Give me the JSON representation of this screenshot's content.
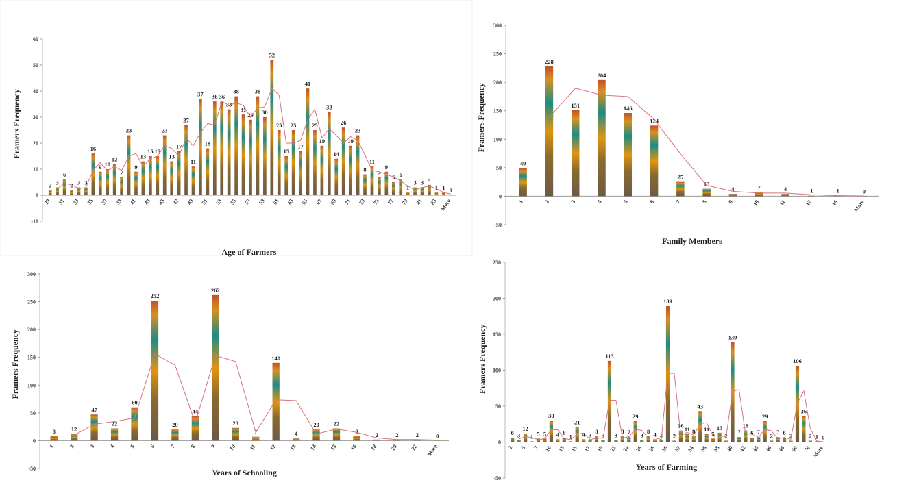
{
  "chart_data": [
    {
      "id": "age",
      "type": "bar",
      "xlabel": "Age of Farmers",
      "ylabel": "Framers Frequency",
      "ylim": [
        -10,
        60
      ],
      "ytick_step": 10,
      "trendline": "2-period moving average",
      "categories": [
        "29",
        "30",
        "31",
        "32",
        "33",
        "34",
        "35",
        "36",
        "37",
        "38",
        "39",
        "40",
        "41",
        "42",
        "43",
        "44",
        "45",
        "46",
        "47",
        "48",
        "49",
        "50",
        "51",
        "52",
        "53",
        "54",
        "55",
        "56",
        "57",
        "58",
        "59",
        "60",
        "61",
        "62",
        "63",
        "64",
        "65",
        "66",
        "67",
        "68",
        "69",
        "70",
        "71",
        "72",
        "73",
        "74",
        "75",
        "76",
        "77",
        "78",
        "79",
        "80",
        "81",
        "82",
        "83",
        "84",
        "More"
      ],
      "values": [
        2,
        3,
        6,
        2,
        3,
        3,
        16,
        9,
        10,
        12,
        7,
        23,
        9,
        13,
        15,
        15,
        23,
        13,
        17,
        27,
        11,
        37,
        18,
        36,
        36,
        33,
        38,
        31,
        29,
        38,
        30,
        52,
        25,
        15,
        25,
        17,
        41,
        25,
        19,
        32,
        14,
        26,
        19,
        23,
        8,
        11,
        7,
        9,
        5,
        6,
        1,
        3,
        3,
        4,
        1,
        1,
        0
      ]
    },
    {
      "id": "family",
      "type": "bar",
      "xlabel": "Family Members",
      "ylabel": "Framers Frequency",
      "ylim": [
        -50,
        300
      ],
      "ytick_step": 50,
      "trendline": "2-period moving average",
      "categories": [
        "1",
        "2",
        "3",
        "4",
        "5",
        "6",
        "7",
        "8",
        "9",
        "10",
        "11",
        "12",
        "16",
        "More"
      ],
      "values": [
        49,
        228,
        151,
        204,
        146,
        124,
        25,
        13,
        4,
        7,
        4,
        1,
        1,
        0
      ]
    },
    {
      "id": "schooling",
      "type": "bar",
      "xlabel": "Years of Schooling",
      "ylabel": "Framers Frequency",
      "ylim": [
        -50,
        300
      ],
      "ytick_step": 50,
      "trendline": "2-period moving average",
      "categories": [
        "1",
        "2",
        "3",
        "4",
        "5",
        "6",
        "7",
        "8",
        "9",
        "10",
        "11",
        "12",
        "13",
        "14",
        "15",
        "16",
        "18",
        "20",
        "22",
        "More"
      ],
      "values": [
        8,
        12,
        47,
        22,
        60,
        252,
        20,
        44,
        262,
        23,
        7,
        140,
        4,
        20,
        22,
        8,
        2,
        2,
        2,
        0
      ]
    },
    {
      "id": "farming",
      "type": "bar",
      "xlabel": "Years of Farming",
      "ylabel": "Framers Frequency",
      "ylim": [
        -50,
        250
      ],
      "ytick_step": 50,
      "trendline": "2-period moving average",
      "categories": [
        "2",
        "4",
        "5",
        "6",
        "7",
        "8",
        "10",
        "12",
        "13",
        "14",
        "15",
        "16",
        "17",
        "18",
        "19",
        "20",
        "22",
        "23",
        "24",
        "25",
        "26",
        "27",
        "28",
        "29",
        "30",
        "31",
        "32",
        "33",
        "34",
        "35",
        "36",
        "37",
        "38",
        "39",
        "40",
        "41",
        "42",
        "43",
        "44",
        "45",
        "46",
        "47",
        "48",
        "49",
        "50",
        "60",
        "70",
        "80",
        "More"
      ],
      "values": [
        6,
        3,
        12,
        1,
        5,
        5,
        30,
        4,
        6,
        1,
        21,
        4,
        3,
        8,
        3,
        113,
        3,
        8,
        7,
        29,
        3,
        8,
        4,
        3,
        189,
        2,
        16,
        11,
        8,
        43,
        11,
        5,
        13,
        2,
        139,
        7,
        16,
        6,
        7,
        29,
        2,
        7,
        6,
        2,
        106,
        36,
        2,
        1,
        0
      ]
    }
  ]
}
